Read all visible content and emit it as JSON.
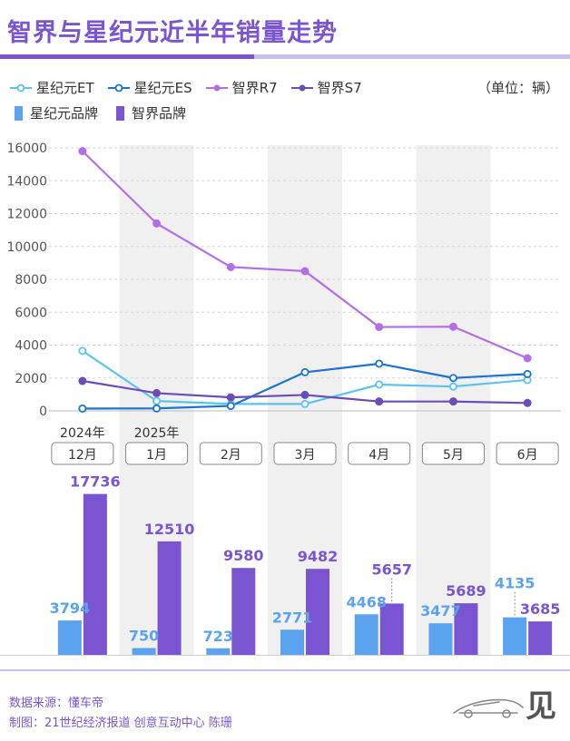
{
  "title": "智界与星纪元近半年销量走势",
  "unit_note": "（单位：辆）",
  "legend": {
    "lines": [
      {
        "name": "星纪元ET",
        "color": "#5cc3ee"
      },
      {
        "name": "星纪元ES",
        "color": "#1a74d2"
      },
      {
        "name": "智界R7",
        "color": "#b46ee8"
      },
      {
        "name": "智界S7",
        "color": "#6c4cb8"
      }
    ],
    "bars": [
      {
        "name": "星纪元品牌",
        "color": "#5ba3ee"
      },
      {
        "name": "智界品牌",
        "color": "#7b55d1"
      }
    ]
  },
  "chart_data": [
    {
      "type": "line",
      "categories": [
        "12月",
        "1月",
        "2月",
        "3月",
        "4月",
        "5月",
        "6月"
      ],
      "year_labels": [
        "2024年",
        "2025年"
      ],
      "y_ticks": [
        "0",
        "2000",
        "4000",
        "6000",
        "8000",
        "10000",
        "12000",
        "14000",
        "16000"
      ],
      "ylim": [
        0,
        16000
      ],
      "grid": true,
      "series": [
        {
          "name": "星纪元ET",
          "values": [
            3650,
            600,
            420,
            420,
            1600,
            1480,
            1880
          ]
        },
        {
          "name": "星纪元ES",
          "values": [
            140,
            150,
            300,
            2350,
            2870,
            2000,
            2240
          ]
        },
        {
          "name": "智界R7",
          "values": [
            15800,
            11400,
            8750,
            8500,
            5100,
            5120,
            3200
          ]
        },
        {
          "name": "智界S7",
          "values": [
            1820,
            1080,
            820,
            970,
            570,
            570,
            480
          ]
        }
      ]
    },
    {
      "type": "bar",
      "categories": [
        "12月",
        "1月",
        "2月",
        "3月",
        "4月",
        "5月",
        "6月"
      ],
      "series": [
        {
          "name": "星纪元品牌",
          "values": [
            3794,
            750,
            723,
            2771,
            4468,
            3477,
            4135
          ]
        },
        {
          "name": "智界品牌",
          "values": [
            17736,
            12510,
            9580,
            9482,
            5657,
            5689,
            3685
          ]
        }
      ]
    }
  ],
  "footer": {
    "source": "数据来源：懂车帝",
    "credit": "制图：21世纪经济报道 创意互动中心 陈珊"
  },
  "logo_text": "见"
}
